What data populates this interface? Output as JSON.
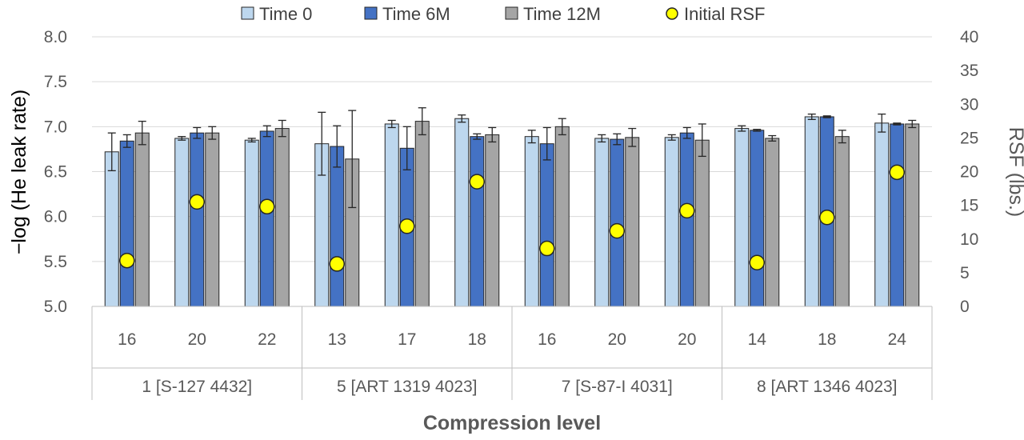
{
  "chart_data": {
    "type": "bar",
    "title": "",
    "xlabel": "Compression level",
    "ylabel": "−log (He leak rate)",
    "y2label": "RSF (lbs.)",
    "ylim": [
      5.0,
      8.0
    ],
    "y2lim": [
      0,
      40
    ],
    "yticks": [
      "5.0",
      "5.5",
      "6.0",
      "6.5",
      "7.0",
      "7.5",
      "8.0"
    ],
    "y2ticks": [
      "0",
      "5",
      "10",
      "15",
      "20",
      "25",
      "30",
      "35",
      "40"
    ],
    "groups": [
      {
        "label": "1 [S-127 4432]",
        "categories": [
          "16",
          "20",
          "22"
        ]
      },
      {
        "label": "5 [ART 1319 4023]",
        "categories": [
          "13",
          "17",
          "18"
        ]
      },
      {
        "label": "7 [S-87-I 4031]",
        "categories": [
          "16",
          "20",
          "20"
        ]
      },
      {
        "label": "8 [ART 1346 4023]",
        "categories": [
          "14",
          "18",
          "24"
        ]
      }
    ],
    "series": [
      {
        "name": "Time 0",
        "color": "#bdd7ee",
        "axis": "left",
        "values": [
          6.72,
          6.87,
          6.85,
          6.81,
          7.03,
          7.09,
          6.89,
          6.87,
          6.88,
          6.98,
          7.11,
          7.04
        ],
        "errors": [
          0.21,
          0.02,
          0.02,
          0.35,
          0.04,
          0.04,
          0.07,
          0.04,
          0.03,
          0.03,
          0.03,
          0.1
        ]
      },
      {
        "name": "Time 6M",
        "color": "#4472c4",
        "axis": "left",
        "values": [
          6.84,
          6.93,
          6.95,
          6.78,
          6.76,
          6.89,
          6.81,
          6.86,
          6.93,
          6.96,
          7.11,
          7.03
        ],
        "errors": [
          0.07,
          0.06,
          0.06,
          0.23,
          0.24,
          0.03,
          0.18,
          0.06,
          0.06,
          0.01,
          0.01,
          0.01
        ]
      },
      {
        "name": "Time 12M",
        "color": "#a5a5a5",
        "axis": "left",
        "values": [
          6.93,
          6.93,
          6.98,
          6.64,
          7.06,
          6.91,
          7.0,
          6.88,
          6.85,
          6.87,
          6.89,
          7.03
        ],
        "errors": [
          0.13,
          0.07,
          0.09,
          0.54,
          0.15,
          0.08,
          0.09,
          0.1,
          0.18,
          0.03,
          0.07,
          0.04
        ]
      },
      {
        "name": "Initial RSF",
        "color": "#ffff00",
        "axis": "right",
        "marker": "circle",
        "values": [
          6.8,
          15.5,
          14.8,
          6.3,
          11.9,
          18.5,
          8.6,
          11.2,
          14.2,
          6.5,
          13.2,
          19.9
        ]
      }
    ],
    "grid": true,
    "legend": "top"
  }
}
